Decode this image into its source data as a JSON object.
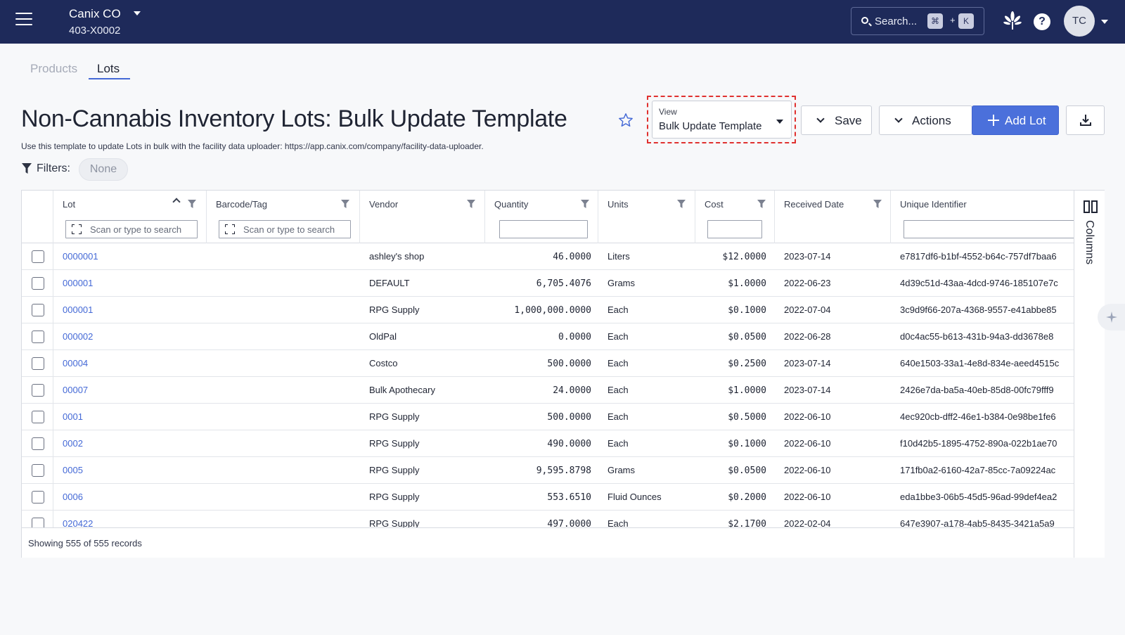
{
  "header": {
    "org_name": "Canix CO",
    "org_id": "403-X0002",
    "search_placeholder": "Search...",
    "shortcut_cmd": "⌘",
    "shortcut_plus": "+",
    "shortcut_key": "K",
    "help_label": "?",
    "avatar_initials": "TC"
  },
  "tabs": [
    {
      "label": "Products",
      "active": false
    },
    {
      "label": "Lots",
      "active": true
    }
  ],
  "page": {
    "title": "Non-Cannabis Inventory Lots: Bulk Update Template",
    "subtitle": "Use this template to update Lots in bulk with the facility data uploader: https://app.canix.com/company/facility-data-uploader.",
    "filters_label": "Filters:",
    "filters_value": "None"
  },
  "view": {
    "label": "View",
    "value": "Bulk Update Template"
  },
  "toolbar": {
    "save_label": "Save",
    "actions_label": "Actions",
    "add_label": "Add Lot"
  },
  "table": {
    "columns": [
      "Lot",
      "Barcode/Tag",
      "Vendor",
      "Quantity",
      "Units",
      "Cost",
      "Received Date",
      "Unique Identifier"
    ],
    "scan_placeholder": "Scan or type to search",
    "rows": [
      {
        "lot": "0000001",
        "barcode": "",
        "vendor": "ashley's shop",
        "quantity": "46.0000",
        "units": "Liters",
        "cost": "$12.0000",
        "received": "2023-07-14",
        "uid": "e7817df6-b1bf-4552-b64c-757df7baa6"
      },
      {
        "lot": "000001",
        "barcode": "",
        "vendor": "DEFAULT",
        "quantity": "6,705.4076",
        "units": "Grams",
        "cost": "$1.0000",
        "received": "2022-06-23",
        "uid": "4d39c51d-43aa-4dcd-9746-185107e7c"
      },
      {
        "lot": "000001",
        "barcode": "",
        "vendor": "RPG Supply",
        "quantity": "1,000,000.0000",
        "units": "Each",
        "cost": "$0.1000",
        "received": "2022-07-04",
        "uid": "3c9d9f66-207a-4368-9557-e41abbe85"
      },
      {
        "lot": "000002",
        "barcode": "",
        "vendor": "OldPal",
        "quantity": "0.0000",
        "units": "Each",
        "cost": "$0.0500",
        "received": "2022-06-28",
        "uid": "d0c4ac55-b613-431b-94a3-dd3678e8"
      },
      {
        "lot": "00004",
        "barcode": "",
        "vendor": "Costco",
        "quantity": "500.0000",
        "units": "Each",
        "cost": "$0.2500",
        "received": "2023-07-14",
        "uid": "640e1503-33a1-4e8d-834e-aeed4515c"
      },
      {
        "lot": "00007",
        "barcode": "",
        "vendor": "Bulk Apothecary",
        "quantity": "24.0000",
        "units": "Each",
        "cost": "$1.0000",
        "received": "2023-07-14",
        "uid": "2426e7da-ba5a-40eb-85d8-00fc79fff9"
      },
      {
        "lot": "0001",
        "barcode": "",
        "vendor": "RPG Supply",
        "quantity": "500.0000",
        "units": "Each",
        "cost": "$0.5000",
        "received": "2022-06-10",
        "uid": "4ec920cb-dff2-46e1-b384-0e98be1fe6"
      },
      {
        "lot": "0002",
        "barcode": "",
        "vendor": "RPG Supply",
        "quantity": "490.0000",
        "units": "Each",
        "cost": "$0.1000",
        "received": "2022-06-10",
        "uid": "f10d42b5-1895-4752-890a-022b1ae70"
      },
      {
        "lot": "0005",
        "barcode": "",
        "vendor": "RPG Supply",
        "quantity": "9,595.8798",
        "units": "Grams",
        "cost": "$0.0500",
        "received": "2022-06-10",
        "uid": "171fb0a2-6160-42a7-85cc-7a09224ac"
      },
      {
        "lot": "0006",
        "barcode": "",
        "vendor": "RPG Supply",
        "quantity": "553.6510",
        "units": "Fluid Ounces",
        "cost": "$0.2000",
        "received": "2022-06-10",
        "uid": "eda1bbe3-06b5-45d5-96ad-99def4ea2"
      },
      {
        "lot": "020422",
        "barcode": "",
        "vendor": "RPG Supply",
        "quantity": "497.0000",
        "units": "Each",
        "cost": "$2.1700",
        "received": "2022-02-04",
        "uid": "647e3907-a178-4ab5-8435-3421a5a9"
      }
    ],
    "footer_text": "Showing 555 of 555 records",
    "columns_panel_label": "Columns"
  },
  "colors": {
    "topbar": "#1e2a5a",
    "accent": "#4469d6",
    "primary_button": "#4b70db",
    "highlight_frame": "#e0312f"
  }
}
